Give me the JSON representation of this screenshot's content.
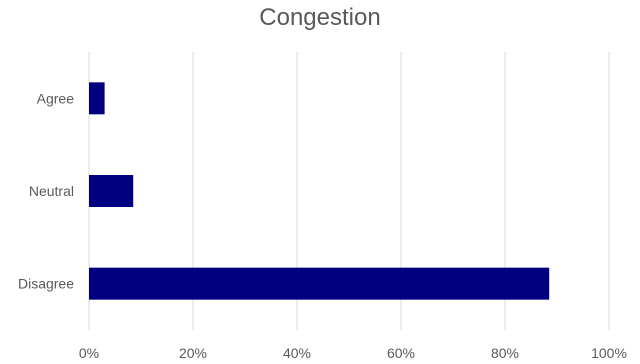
{
  "chart_data": {
    "type": "bar",
    "orientation": "horizontal",
    "title": "Congestion",
    "categories": [
      "Agree",
      "Neutral",
      "Disagree"
    ],
    "values": [
      3,
      8.5,
      88.5
    ],
    "xlabel": "",
    "ylabel": "",
    "xlim": [
      0,
      100
    ],
    "xticks": [
      "0%",
      "20%",
      "40%",
      "60%",
      "80%",
      "100%"
    ],
    "grid": "vertical",
    "legend": "none",
    "bar_color": "#000080",
    "grid_color": "#d9d9d9",
    "text_color": "#595959"
  }
}
